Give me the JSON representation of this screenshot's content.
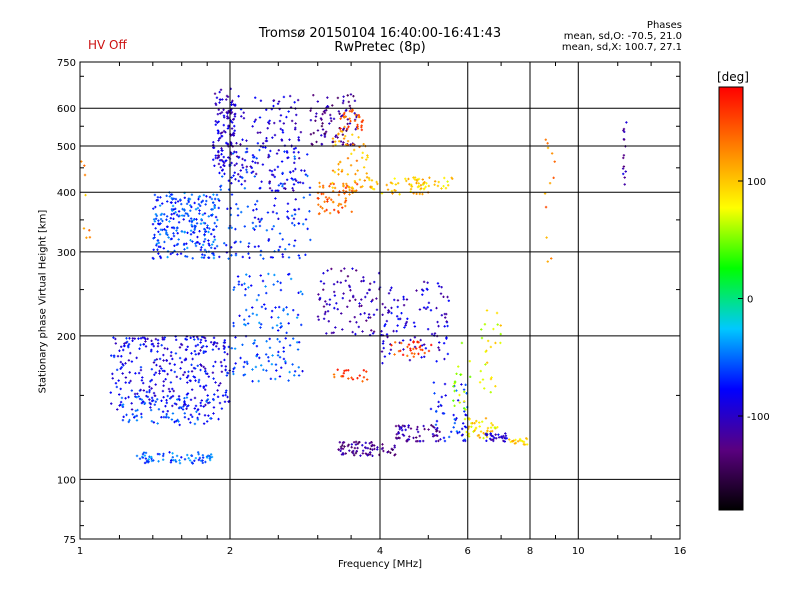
{
  "header": {
    "title_line1": "Tromsø 20150104 16:40:00-16:41:43",
    "title_line2": "RwPretec (8p)",
    "status": "HV Off",
    "phases_title": "Phases",
    "phases_o": "mean, sd,O: -70.5, 21.0",
    "phases_x": "mean, sd,X: 100.7, 27.1"
  },
  "colorbar": {
    "unit": "[deg]",
    "range": [
      -180,
      180
    ],
    "ticks": [
      {
        "value": 100,
        "label": "100"
      },
      {
        "value": 0,
        "label": "0"
      },
      {
        "value": -100,
        "label": "-100"
      }
    ],
    "colors": [
      "#000000",
      "#5a0080",
      "#0000ff",
      "#00c8ff",
      "#00ff00",
      "#ffff00",
      "#ff8000",
      "#ff0000"
    ]
  },
  "chart_data": {
    "type": "scatter",
    "title": "Tromsø 20150104 16:40:00-16:41:43",
    "subtitle": "RwPretec (8p)",
    "xlabel": "Frequency [MHz]",
    "ylabel": "Stationary phase Virtual Height [km]",
    "xscale": "log",
    "yscale": "log",
    "xlim": [
      1,
      16
    ],
    "ylim": [
      75,
      750
    ],
    "grid": true,
    "xticks": [
      1,
      2,
      4,
      8,
      16
    ],
    "xgrid": [
      2,
      4,
      6,
      8,
      10
    ],
    "yticks": [
      75,
      100,
      200,
      300,
      400,
      500,
      600,
      750
    ],
    "ygrid": [
      100,
      200,
      300,
      400,
      500,
      600
    ],
    "xtick_labels": [
      {
        "value": 1,
        "label": "1"
      },
      {
        "value": 2,
        "label": "2"
      },
      {
        "value": 4,
        "label": "4"
      },
      {
        "value": 6,
        "label": "6"
      },
      {
        "value": 8,
        "label": "8"
      },
      {
        "value": 10,
        "label": "10"
      },
      {
        "value": 16,
        "label": "16"
      }
    ],
    "ytick_labels": [
      {
        "value": 75,
        "label": "75"
      },
      {
        "value": 100,
        "label": "100"
      },
      {
        "value": 200,
        "label": "200"
      },
      {
        "value": 300,
        "label": "300"
      },
      {
        "value": 400,
        "label": "400"
      },
      {
        "value": 500,
        "label": "500"
      },
      {
        "value": 600,
        "label": "600"
      },
      {
        "value": 750,
        "label": "750"
      }
    ],
    "color_by": "phase [deg]",
    "clusters": [
      {
        "x": [
          1.85,
          2.05
        ],
        "y": [
          450,
          660
        ],
        "phase": -100,
        "n": 120
      },
      {
        "x": [
          1.4,
          1.9
        ],
        "y": [
          290,
          400
        ],
        "phase": -60,
        "n": 260
      },
      {
        "x": [
          1.9,
          2.9
        ],
        "y": [
          290,
          500
        ],
        "phase": -70,
        "n": 180
      },
      {
        "x": [
          2.05,
          2.8
        ],
        "y": [
          400,
          640
        ],
        "phase": -95,
        "n": 120
      },
      {
        "x": [
          1.15,
          2.0
        ],
        "y": [
          140,
          200
        ],
        "phase": -85,
        "n": 320
      },
      {
        "x": [
          1.2,
          1.9
        ],
        "y": [
          130,
          150
        ],
        "phase": -65,
        "n": 90
      },
      {
        "x": [
          1.3,
          1.85
        ],
        "y": [
          108,
          114
        ],
        "phase": -55,
        "n": 70
      },
      {
        "x": [
          2.0,
          2.8
        ],
        "y": [
          160,
          270
        ],
        "phase": -60,
        "n": 140
      },
      {
        "x": [
          2.9,
          3.6
        ],
        "y": [
          500,
          650
        ],
        "phase": -120,
        "n": 90
      },
      {
        "x": [
          3.0,
          3.6
        ],
        "y": [
          360,
          420
        ],
        "phase": 140,
        "n": 60
      },
      {
        "x": [
          3.2,
          3.8
        ],
        "y": [
          400,
          540
        ],
        "phase": 110,
        "n": 60
      },
      {
        "x": [
          3.3,
          3.7
        ],
        "y": [
          540,
          600
        ],
        "phase": 145,
        "n": 30
      },
      {
        "x": [
          3.8,
          5.0
        ],
        "y": [
          395,
          430
        ],
        "phase": 100,
        "n": 40
      },
      {
        "x": [
          4.6,
          5.6
        ],
        "y": [
          405,
          430
        ],
        "phase": 95,
        "n": 35
      },
      {
        "x": [
          3.0,
          4.0
        ],
        "y": [
          200,
          280
        ],
        "phase": -110,
        "n": 90
      },
      {
        "x": [
          4.0,
          5.5
        ],
        "y": [
          175,
          260
        ],
        "phase": -95,
        "n": 110
      },
      {
        "x": [
          3.3,
          4.3
        ],
        "y": [
          112,
          120
        ],
        "phase": -120,
        "n": 80
      },
      {
        "x": [
          3.2,
          3.8
        ],
        "y": [
          160,
          170
        ],
        "phase": 150,
        "n": 20
      },
      {
        "x": [
          4.2,
          5.1
        ],
        "y": [
          180,
          195
        ],
        "phase": 155,
        "n": 30
      },
      {
        "x": [
          4.3,
          5.3
        ],
        "y": [
          120,
          130
        ],
        "phase": -115,
        "n": 60
      },
      {
        "x": [
          5.0,
          6.0
        ],
        "y": [
          120,
          160
        ],
        "phase": -70,
        "n": 50
      },
      {
        "x": [
          5.9,
          6.9
        ],
        "y": [
          122,
          135
        ],
        "phase": 90,
        "n": 45
      },
      {
        "x": [
          6.5,
          7.2
        ],
        "y": [
          120,
          125
        ],
        "phase": -100,
        "n": 30
      },
      {
        "x": [
          7.2,
          8.0
        ],
        "y": [
          118,
          122
        ],
        "phase": 95,
        "n": 20
      },
      {
        "x": [
          6.3,
          7.0
        ],
        "y": [
          150,
          240
        ],
        "phase": 80,
        "n": 25
      },
      {
        "x": [
          5.6,
          6.1
        ],
        "y": [
          140,
          200
        ],
        "phase": 60,
        "n": 20
      },
      {
        "x": [
          12.3,
          12.5
        ],
        "y": [
          400,
          600
        ],
        "phase": -110,
        "n": 15
      },
      {
        "x": [
          8.5,
          9.0
        ],
        "y": [
          280,
          550
        ],
        "phase": 130,
        "n": 12
      },
      {
        "x": [
          1.0,
          1.05
        ],
        "y": [
          300,
          480
        ],
        "phase": 120,
        "n": 8
      }
    ]
  }
}
